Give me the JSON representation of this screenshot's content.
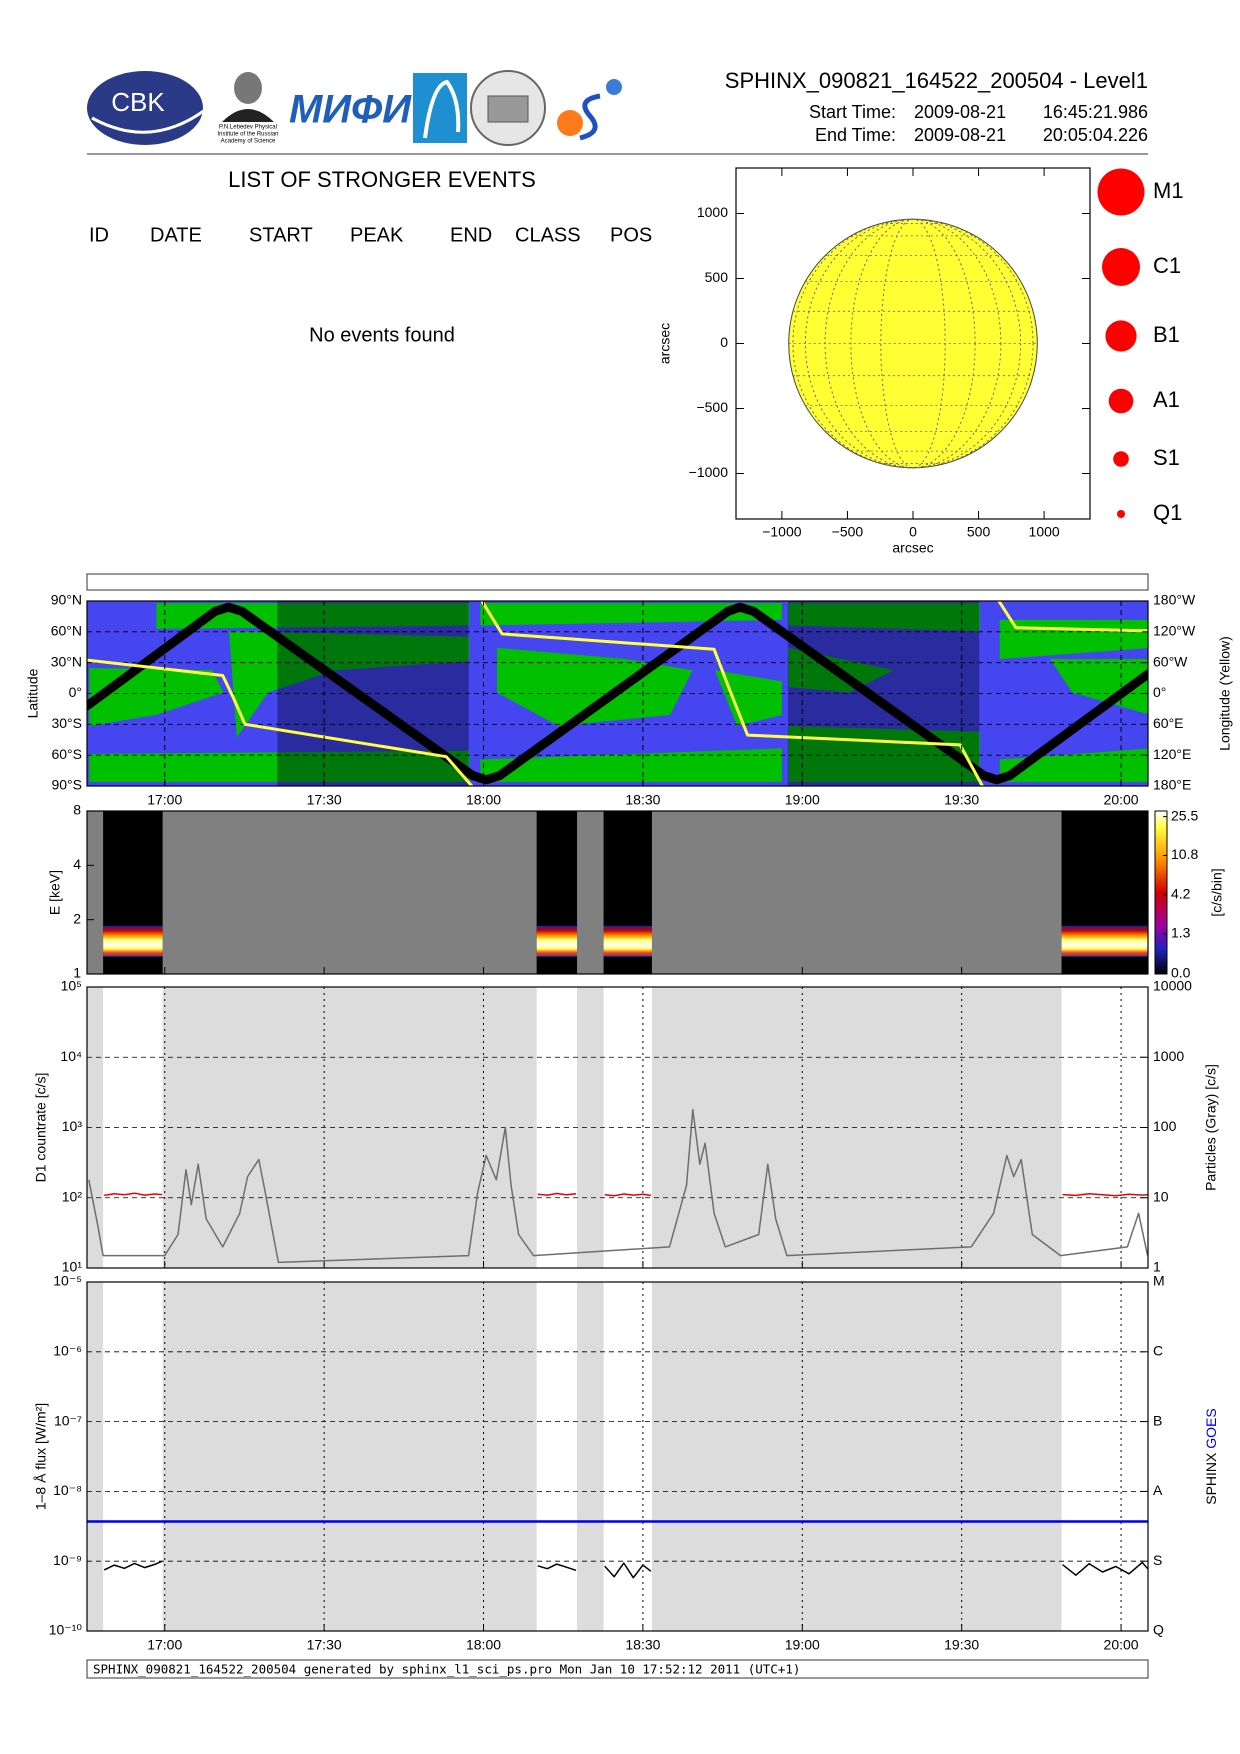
{
  "header": {
    "title": "SPHINX_090821_164522_200504 - Level1",
    "start_label": "Start Time:",
    "start_date": "2009-08-21",
    "start_time": "16:45:21.986",
    "end_label": "End Time:",
    "end_date": "2009-08-21",
    "end_time": "20:05:04.226",
    "logos": {
      "cbk": "CBK",
      "lebedev": [
        "P.N.Lebedev Physical",
        "Institute of the Russian",
        "Academy of Science"
      ],
      "mifi": "МИФИ"
    }
  },
  "events": {
    "title": "LIST OF STRONGER EVENTS",
    "columns": [
      "ID",
      "DATE",
      "START",
      "PEAK",
      "END",
      "CLASS",
      "POS"
    ],
    "message": "No events found"
  },
  "flare_classes": {
    "labels": [
      "M1",
      "C1",
      "B1",
      "A1",
      "S1",
      "Q1"
    ],
    "color": "#ff0000"
  },
  "footer": "SPHINX_090821_164522_200504 generated by sphinx_l1_sci_ps.pro Mon Jan 10 17:52:12 2011 (UTC+1)",
  "chart_data": [
    {
      "type": "sunmap",
      "xlabel": "arcsec",
      "ylabel": "arcsec",
      "xlim": [
        -1350,
        1350
      ],
      "ylim": [
        -1350,
        1350
      ],
      "xticks": [
        {
          "value": -1000,
          "label": "−1000"
        },
        {
          "value": -500,
          "label": "−500"
        },
        0,
        500,
        1000
      ],
      "yticks": [
        {
          "value": -1000,
          "label": "−1000"
        },
        {
          "value": -500,
          "label": "−500"
        },
        0,
        500,
        1000
      ],
      "solar_radius": 948,
      "color": "#ffff33",
      "grid": true
    },
    {
      "type": "orbit",
      "ylabel": "Latitude",
      "y2label": "Longitude (Yellow)",
      "xlim": [
        1005.366,
        1205.07
      ],
      "xticks": [
        {
          "value": 1020,
          "label": "17:00"
        },
        {
          "value": 1050,
          "label": "17:30"
        },
        {
          "value": 1080,
          "label": "18:00"
        },
        {
          "value": 1110,
          "label": "18:30"
        },
        {
          "value": 1140,
          "label": "19:00"
        },
        {
          "value": 1170,
          "label": "19:30"
        },
        {
          "value": 1200,
          "label": "20:00"
        }
      ],
      "ylim": [
        -90,
        90
      ],
      "yticks": [
        {
          "value": 90,
          "label": "90°N"
        },
        {
          "value": 60,
          "label": "60°N"
        },
        {
          "value": 30,
          "label": "30°N"
        },
        {
          "value": 0,
          "label": "0°"
        },
        {
          "value": -30,
          "label": "30°S"
        },
        {
          "value": -60,
          "label": "60°S"
        },
        {
          "value": -90,
          "label": "90°S"
        }
      ],
      "y2lim": [
        -180,
        180
      ],
      "y2ticks": [
        {
          "value": 180,
          "label": "180°W"
        },
        {
          "value": 120,
          "label": "120°W"
        },
        {
          "value": 60,
          "label": "60°W"
        },
        {
          "value": 0,
          "label": "0°"
        },
        {
          "value": -60,
          "label": "60°E"
        },
        {
          "value": -120,
          "label": "120°E"
        },
        {
          "value": -180,
          "label": "180°E"
        }
      ],
      "background": "#4646f0",
      "region_color": "#00c000",
      "shaded": [
        [
          1041.2,
          1077.2
        ],
        [
          1137.3,
          1173.3
        ]
      ],
      "series": [
        {
          "color": "#000000",
          "x": [
            1005.4,
            1029.5,
            1032.0,
            1034.5,
            1078.0,
            1080.5,
            1083.0,
            1126.0,
            1128.3,
            1130.8,
            1174.2,
            1176.6,
            1179.0,
            1205.07
          ],
          "values": [
            -12,
            80,
            84,
            80,
            -80,
            -84,
            -80,
            80,
            84,
            80,
            -80,
            -84,
            -80,
            19
          ]
        },
        {
          "color": "#ffff44",
          "axis": "y2",
          "x": [
            1005.4,
            1030.9,
            1033.0,
            1035.1,
            1073.0,
            1077.8,
            1078.7,
            1079.7,
            1083.5,
            1123.4,
            1126.6,
            1129.7,
            1169.7,
            1173.9,
            1175.5,
            1177.0,
            1180.2,
            1205.07
          ],
          "values": [
            65,
            35,
            -10,
            -60,
            -123,
            -180,
            null,
            180,
            116,
            86,
            0,
            -81,
            -100,
            -180,
            null,
            180,
            128,
            122
          ]
        }
      ]
    },
    {
      "type": "spectrogram",
      "ylabel": "E [keV]",
      "log": true,
      "ylim": [
        1,
        8
      ],
      "yticks": [
        1,
        2,
        4,
        8
      ],
      "xlim": [
        1005.366,
        1205.07
      ],
      "background": "#808080",
      "intervals": [
        [
          1008.4,
          1019.6
        ],
        [
          1090.0,
          1097.6
        ],
        [
          1102.6,
          1111.7
        ],
        [
          1188.8,
          1205.07
        ]
      ],
      "band": [
        1.25,
        1.85
      ],
      "colorbar": {
        "label": "[c/s/bin]",
        "clim": [
          0,
          28.8
        ],
        "ticks": [
          25.5,
          10.8,
          4.2,
          1.3,
          {
            "value": 0,
            "label": "0.0"
          }
        ]
      }
    },
    {
      "type": "line",
      "ylabel": "D1 countrate [c/s]",
      "y2label": "Particles (Gray) [c/s]",
      "log": true,
      "xlim": [
        1005.366,
        1205.07
      ],
      "ylim": [
        10,
        100000
      ],
      "yticks": [
        {
          "value": 10,
          "label": "10¹"
        },
        {
          "value": 100,
          "label": "10²"
        },
        {
          "value": 1000,
          "label": "10³"
        },
        {
          "value": 10000,
          "label": "10⁴"
        },
        {
          "value": 100000,
          "label": "10⁵"
        }
      ],
      "y2lim": [
        1,
        10000
      ],
      "y2ticks": [
        1,
        10,
        100,
        1000,
        10000
      ],
      "series": [
        {
          "color": "#ee0000",
          "x": [
            1008.6,
            1010.5,
            1012.4,
            1014.3,
            1016.2,
            1018.1,
            1019.5,
            1050,
            1090.2,
            1092.0,
            1093.8,
            1095.6,
            1097.4,
            1100,
            1102.8,
            1104.6,
            1106.4,
            1108.2,
            1110.0,
            1111.5,
            1150,
            1189.0,
            1191.5,
            1194.0,
            1196.5,
            1199.0,
            1201.5,
            1204.0,
            1205.0
          ],
          "values": [
            108,
            114,
            110,
            116,
            109,
            113,
            111,
            null,
            112,
            109,
            115,
            110,
            114,
            null,
            110,
            107,
            113,
            109,
            112,
            108,
            null,
            111,
            108,
            114,
            110,
            107,
            112,
            109,
            110
          ]
        },
        {
          "color": "#6e6e6e",
          "axis": "y2",
          "x": [
            1005.7,
            1007.4,
            1008.4,
            1020.0,
            1022.5,
            1024.0,
            1025.0,
            1026.3,
            1027.8,
            1030.9,
            1034.1,
            1035.6,
            1037.7,
            1038.9,
            1040.4,
            1041.4,
            1077.2,
            1078.9,
            1080.5,
            1082.4,
            1084.1,
            1085.2,
            1086.6,
            1089.4,
            1115.0,
            1118.2,
            1119.4,
            1120.7,
            1121.7,
            1123.4,
            1125.5,
            1131.8,
            1133.5,
            1135.0,
            1137.1,
            1171.8,
            1176.0,
            1178.5,
            1179.8,
            1181.2,
            1183.3,
            1188.6,
            1201.2,
            1203.3,
            1205.0
          ],
          "values": [
            18,
            4,
            1.5,
            1.5,
            3,
            25,
            8,
            30,
            5,
            2,
            6,
            20,
            35,
            12,
            3,
            1.2,
            1.5,
            12,
            40,
            18,
            100,
            15,
            3,
            1.5,
            2,
            15,
            180,
            30,
            60,
            6,
            2,
            3,
            30,
            5,
            1.5,
            2,
            6,
            40,
            20,
            35,
            3,
            1.5,
            2,
            6,
            1.5
          ]
        }
      ]
    },
    {
      "type": "line",
      "ylabel": "1–8 Å flux [W/m²]",
      "log": true,
      "xlim": [
        1005.366,
        1205.07
      ],
      "xticks": [
        {
          "value": 1020,
          "label": "17:00"
        },
        {
          "value": 1050,
          "label": "17:30"
        },
        {
          "value": 1080,
          "label": "18:00"
        },
        {
          "value": 1110,
          "label": "18:30"
        },
        {
          "value": 1140,
          "label": "19:00"
        },
        {
          "value": 1170,
          "label": "19:30"
        },
        {
          "value": 1200,
          "label": "20:00"
        }
      ],
      "ylim": [
        1e-10,
        1e-05
      ],
      "yticks": [
        {
          "value": 1e-10,
          "label": "10⁻¹⁰"
        },
        {
          "value": 1e-09,
          "label": "10⁻⁹"
        },
        {
          "value": 1e-08,
          "label": "10⁻⁸"
        },
        {
          "value": 1e-07,
          "label": "10⁻⁷"
        },
        {
          "value": 1e-06,
          "label": "10⁻⁶"
        },
        {
          "value": 1e-05,
          "label": "10⁻⁵"
        }
      ],
      "y2ticks": [
        {
          "value": 1e-10,
          "label": "Q"
        },
        {
          "value": 1e-09,
          "label": "S"
        },
        {
          "value": 1e-08,
          "label": "A"
        },
        {
          "value": 1e-07,
          "label": "B"
        },
        {
          "value": 1e-06,
          "label": "C"
        },
        {
          "value": 1e-05,
          "label": "M"
        }
      ],
      "series": [
        {
          "name": "SPHINX",
          "color": "#000000",
          "x": [
            1008.6,
            1010.5,
            1012.4,
            1014.3,
            1016.2,
            1018.1,
            1019.5,
            1050,
            1090.2,
            1092.0,
            1093.8,
            1095.6,
            1097.4,
            1100,
            1102.8,
            1104.6,
            1106.4,
            1108.2,
            1110.0,
            1111.5,
            1150,
            1189.0,
            1191.5,
            1194.0,
            1196.5,
            1199.0,
            1201.5,
            1204.0,
            1205.0
          ],
          "values": [
            7.5e-10,
            8.8e-10,
            7.9e-10,
            9.3e-10,
            8.1e-10,
            9e-10,
            1e-09,
            null,
            8.6e-10,
            7.8e-10,
            9.1e-10,
            8.2e-10,
            7.4e-10,
            null,
            8.5e-10,
            6e-10,
            9.4e-10,
            5.8e-10,
            8.8e-10,
            7.2e-10,
            null,
            8.9e-10,
            6.3e-10,
            9.2e-10,
            7e-10,
            8.4e-10,
            6.6e-10,
            9.6e-10,
            7.8e-10
          ]
        },
        {
          "name": "GOES",
          "color": "#0000ee",
          "x": [
            1005.366,
            1205.07
          ],
          "values": [
            3.7e-09,
            3.7e-09
          ]
        }
      ]
    }
  ]
}
